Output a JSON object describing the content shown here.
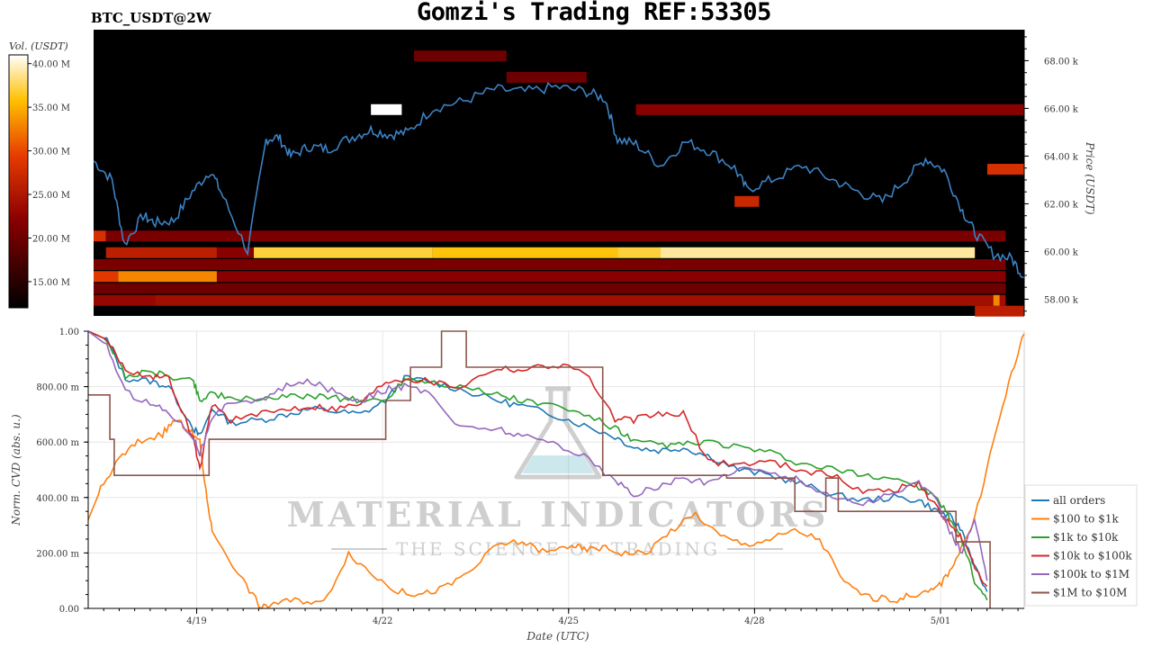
{
  "header": {
    "pair": "BTC_USDT@2W",
    "title": "Gomzi's Trading REF:53305"
  },
  "watermark": {
    "line1": "MATERIAL INDICATORS",
    "line2": "THE SCIENCE OF TRADING"
  },
  "colors": {
    "all_orders": "#1f77b4",
    "s100_1k": "#ff7f0e",
    "s1k_10k": "#2ca02c",
    "s10k_100k": "#d62728",
    "s100k_1m": "#9467bd",
    "s1m_10m": "#8c564b",
    "price_line": "#3b82c4",
    "heatmap_bg": "#000000"
  },
  "chart_data": [
    {
      "type": "heatmap",
      "colorbar": {
        "label": "Vol. (USDT)",
        "ticks": [
          "40.00 M",
          "35.00 M",
          "30.00 M",
          "25.00 M",
          "20.00 M",
          "15.00 M"
        ],
        "range": [
          12,
          41
        ]
      },
      "y_axis": {
        "label": "Price (USDT)",
        "ticks": [
          "68.00 k",
          "66.00 k",
          "64.00 k",
          "62.00 k",
          "60.00 k",
          "58.00 k"
        ],
        "tick_values": [
          68000,
          66000,
          64000,
          62000,
          60000,
          58000
        ],
        "range": [
          57300,
          69300
        ],
        "side": "right"
      },
      "x_range_days": [
        0,
        15.1
      ],
      "bands": [
        {
          "price": 59950,
          "segments": [
            [
              0.2,
              2.0,
              26
            ],
            [
              2.0,
              2.6,
              22
            ],
            [
              2.6,
              5.5,
              37
            ],
            [
              5.5,
              8.5,
              36
            ],
            [
              8.5,
              9.2,
              37
            ],
            [
              9.2,
              14.3,
              39
            ]
          ]
        },
        {
          "price": 60650,
          "segments": [
            [
              0,
              0.2,
              28
            ],
            [
              0.2,
              14.8,
              21
            ]
          ]
        },
        {
          "price": 59450,
          "segments": [
            [
              0,
              14.8,
              21
            ]
          ]
        },
        {
          "price": 58950,
          "segments": [
            [
              0,
              0.4,
              29
            ],
            [
              0.4,
              2.0,
              33
            ],
            [
              2.0,
              14.8,
              22
            ]
          ]
        },
        {
          "price": 58450,
          "segments": [
            [
              0,
              14.8,
              20
            ]
          ]
        },
        {
          "price": 57950,
          "segments": [
            [
              0,
              1.0,
              23
            ],
            [
              1.0,
              14.8,
              24
            ],
            [
              14.6,
              14.7,
              33
            ]
          ]
        },
        {
          "price": 57500,
          "segments": [
            [
              14.3,
              15.1,
              26
            ]
          ]
        },
        {
          "price": 65950,
          "segments": [
            [
              8.8,
              15.1,
              22
            ]
          ]
        },
        {
          "price": 63450,
          "segments": [
            [
              14.5,
              15.1,
              28
            ]
          ]
        },
        {
          "price": 62100,
          "segments": [
            [
              10.4,
              10.8,
              27
            ]
          ]
        },
        {
          "price": 65950,
          "segments": [
            [
              4.5,
              5.0,
              41
            ]
          ]
        },
        {
          "price": 68200,
          "segments": [
            [
              5.2,
              6.7,
              20
            ]
          ]
        },
        {
          "price": 67300,
          "segments": [
            [
              6.7,
              8.0,
              20
            ]
          ]
        }
      ],
      "price_line": {
        "x_days": [
          0,
          0.3,
          0.5,
          0.8,
          1.0,
          1.3,
          1.6,
          1.9,
          2.1,
          2.5,
          2.8,
          3.0,
          3.2,
          3.5,
          3.8,
          4.2,
          4.5,
          4.8,
          5.1,
          5.5,
          6.0,
          6.5,
          7.0,
          7.5,
          8.0,
          8.3,
          8.5,
          8.8,
          9.2,
          9.6,
          10.0,
          10.4,
          10.6,
          11.0,
          11.5,
          12.0,
          12.4,
          12.8,
          13.2,
          13.5,
          13.8,
          14.1,
          14.3,
          14.6,
          14.9,
          15.1
        ],
        "y_price": [
          63800,
          63000,
          60300,
          61500,
          61200,
          61300,
          62500,
          63400,
          62300,
          60000,
          64700,
          64800,
          64000,
          64400,
          64300,
          64800,
          65100,
          64900,
          65000,
          66000,
          66300,
          66800,
          66700,
          66900,
          66700,
          66400,
          64700,
          64500,
          63600,
          64600,
          64200,
          63500,
          62600,
          63000,
          63600,
          63000,
          62500,
          62100,
          63100,
          63900,
          63400,
          61700,
          60800,
          59900,
          59700,
          58900
        ]
      }
    },
    {
      "type": "line",
      "xlabel": "Date (UTC)",
      "ylabel": "Norm. CVD (abs. u.)",
      "x_ticks": [
        "4/19",
        "4/22",
        "4/25",
        "4/28",
        "5/01"
      ],
      "x_tick_days": [
        1.75,
        4.75,
        7.75,
        10.75,
        13.75
      ],
      "xlim": [
        0,
        15.1
      ],
      "y_ticks": [
        "1.00",
        "800.00 m",
        "600.00 m",
        "400.00 m",
        "200.00 m",
        "0.00"
      ],
      "y_tick_values": [
        1.0,
        0.8,
        0.6,
        0.4,
        0.2,
        0.0
      ],
      "ylim": [
        0,
        1
      ],
      "legend_position": "right",
      "series": [
        {
          "name": "all orders",
          "color_key": "all_orders",
          "x": [
            0,
            0.3,
            0.6,
            1.0,
            1.3,
            1.7,
            1.8,
            2.0,
            2.3,
            2.8,
            3.2,
            3.6,
            4.0,
            4.4,
            4.8,
            5.1,
            5.5,
            6.0,
            6.6,
            7.0,
            7.5,
            8.0,
            8.5,
            8.8,
            9.2,
            9.6,
            10.0,
            10.5,
            11.0,
            11.5,
            12.0,
            12.5,
            13.0,
            13.4,
            13.7,
            13.9,
            14.1,
            14.3,
            14.5
          ],
          "y": [
            1.0,
            0.97,
            0.83,
            0.82,
            0.8,
            0.65,
            0.62,
            0.72,
            0.67,
            0.68,
            0.7,
            0.72,
            0.71,
            0.7,
            0.75,
            0.83,
            0.82,
            0.79,
            0.75,
            0.73,
            0.7,
            0.66,
            0.62,
            0.58,
            0.57,
            0.58,
            0.55,
            0.5,
            0.48,
            0.45,
            0.41,
            0.39,
            0.4,
            0.39,
            0.35,
            0.33,
            0.28,
            0.15,
            0.06
          ]
        },
        {
          "name": "$100 to $1k",
          "color_key": "s100_1k",
          "x": [
            0,
            0.2,
            0.5,
            0.8,
            1.2,
            1.4,
            1.6,
            1.8,
            1.9,
            2.0,
            2.5,
            2.8,
            3.0,
            3.4,
            3.8,
            4.2,
            4.6,
            5.0,
            5.4,
            5.8,
            6.2,
            6.6,
            7.0,
            7.4,
            7.8,
            8.0,
            8.3,
            8.6,
            9.0,
            9.4,
            9.8,
            10.2,
            10.6,
            11.0,
            11.4,
            11.8,
            12.2,
            12.6,
            13.0,
            13.3,
            13.6,
            13.8,
            14.0,
            14.3,
            14.6,
            14.9,
            15.1
          ],
          "y": [
            0.32,
            0.43,
            0.54,
            0.6,
            0.63,
            0.68,
            0.65,
            0.6,
            0.42,
            0.28,
            0.1,
            0.0,
            0.02,
            0.03,
            0.02,
            0.2,
            0.12,
            0.06,
            0.05,
            0.08,
            0.14,
            0.23,
            0.24,
            0.2,
            0.23,
            0.21,
            0.22,
            0.2,
            0.2,
            0.28,
            0.34,
            0.26,
            0.23,
            0.25,
            0.28,
            0.25,
            0.09,
            0.04,
            0.03,
            0.05,
            0.06,
            0.1,
            0.18,
            0.32,
            0.6,
            0.85,
            0.99
          ]
        },
        {
          "name": "$1k to $10k",
          "color_key": "s1k_10k",
          "x": [
            0,
            0.3,
            0.6,
            1.0,
            1.3,
            1.7,
            1.8,
            2.0,
            2.3,
            2.8,
            3.2,
            3.6,
            4.0,
            4.4,
            4.8,
            5.1,
            5.5,
            6.0,
            6.6,
            7.0,
            7.5,
            8.0,
            8.5,
            8.8,
            9.2,
            9.6,
            10.0,
            10.5,
            11.0,
            11.5,
            12.0,
            12.5,
            13.0,
            13.4,
            13.7,
            13.9,
            14.1,
            14.3,
            14.5
          ],
          "y": [
            1.0,
            0.97,
            0.84,
            0.85,
            0.84,
            0.82,
            0.75,
            0.78,
            0.75,
            0.76,
            0.76,
            0.77,
            0.76,
            0.75,
            0.75,
            0.83,
            0.82,
            0.8,
            0.77,
            0.75,
            0.73,
            0.7,
            0.65,
            0.6,
            0.59,
            0.59,
            0.6,
            0.58,
            0.56,
            0.52,
            0.5,
            0.48,
            0.47,
            0.44,
            0.39,
            0.33,
            0.25,
            0.1,
            0.03
          ]
        },
        {
          "name": "$10k to $100k",
          "color_key": "s10k_100k",
          "x": [
            0,
            0.3,
            0.6,
            1.0,
            1.3,
            1.7,
            1.8,
            2.0,
            2.3,
            2.8,
            3.2,
            3.6,
            4.0,
            4.4,
            4.8,
            5.1,
            5.5,
            6.0,
            6.6,
            7.0,
            7.5,
            8.0,
            8.5,
            8.8,
            9.2,
            9.6,
            10.0,
            10.5,
            11.0,
            11.5,
            12.0,
            12.5,
            13.0,
            13.4,
            13.7,
            13.9,
            14.1,
            14.3,
            14.5
          ],
          "y": [
            1.0,
            0.97,
            0.86,
            0.84,
            0.83,
            0.61,
            0.5,
            0.74,
            0.68,
            0.7,
            0.72,
            0.73,
            0.72,
            0.74,
            0.82,
            0.83,
            0.82,
            0.8,
            0.87,
            0.86,
            0.88,
            0.86,
            0.68,
            0.68,
            0.7,
            0.7,
            0.53,
            0.52,
            0.53,
            0.5,
            0.48,
            0.42,
            0.43,
            0.45,
            0.36,
            0.3,
            0.25,
            0.15,
            0.08
          ]
        },
        {
          "name": "$100k to $1M",
          "color_key": "s100k_1m",
          "x": [
            0,
            0.3,
            0.6,
            1.0,
            1.3,
            1.7,
            1.8,
            2.0,
            2.3,
            2.8,
            3.2,
            3.6,
            4.0,
            4.4,
            4.8,
            5.1,
            5.5,
            6.0,
            6.6,
            7.0,
            7.5,
            8.0,
            8.5,
            8.8,
            9.2,
            9.6,
            10.0,
            10.5,
            11.0,
            11.5,
            12.0,
            12.5,
            13.0,
            13.4,
            13.7,
            13.9,
            14.1,
            14.3,
            14.5
          ],
          "y": [
            1.0,
            0.95,
            0.78,
            0.74,
            0.71,
            0.62,
            0.56,
            0.68,
            0.75,
            0.75,
            0.8,
            0.82,
            0.78,
            0.75,
            0.79,
            0.8,
            0.78,
            0.65,
            0.65,
            0.62,
            0.6,
            0.55,
            0.46,
            0.41,
            0.44,
            0.47,
            0.45,
            0.51,
            0.49,
            0.46,
            0.4,
            0.38,
            0.41,
            0.46,
            0.38,
            0.28,
            0.2,
            0.32,
            0.1
          ]
        },
        {
          "name": "$1M to $10M",
          "color_key": "s1m_10m",
          "step": true,
          "x": [
            0,
            0.35,
            0.42,
            1.45,
            1.95,
            2.0,
            4.8,
            5.2,
            5.7,
            6.1,
            8.1,
            8.3,
            10.1,
            10.3,
            11.0,
            11.4,
            11.9,
            12.1,
            13.3,
            13.6,
            14.0,
            14.3,
            14.55
          ],
          "y": [
            0.77,
            0.61,
            0.48,
            0.48,
            0.61,
            0.61,
            0.75,
            0.87,
            1.0,
            0.87,
            0.87,
            0.48,
            0.48,
            0.47,
            0.47,
            0.35,
            0.47,
            0.35,
            0.35,
            0.35,
            0.24,
            0.24,
            0.0
          ]
        }
      ]
    }
  ]
}
